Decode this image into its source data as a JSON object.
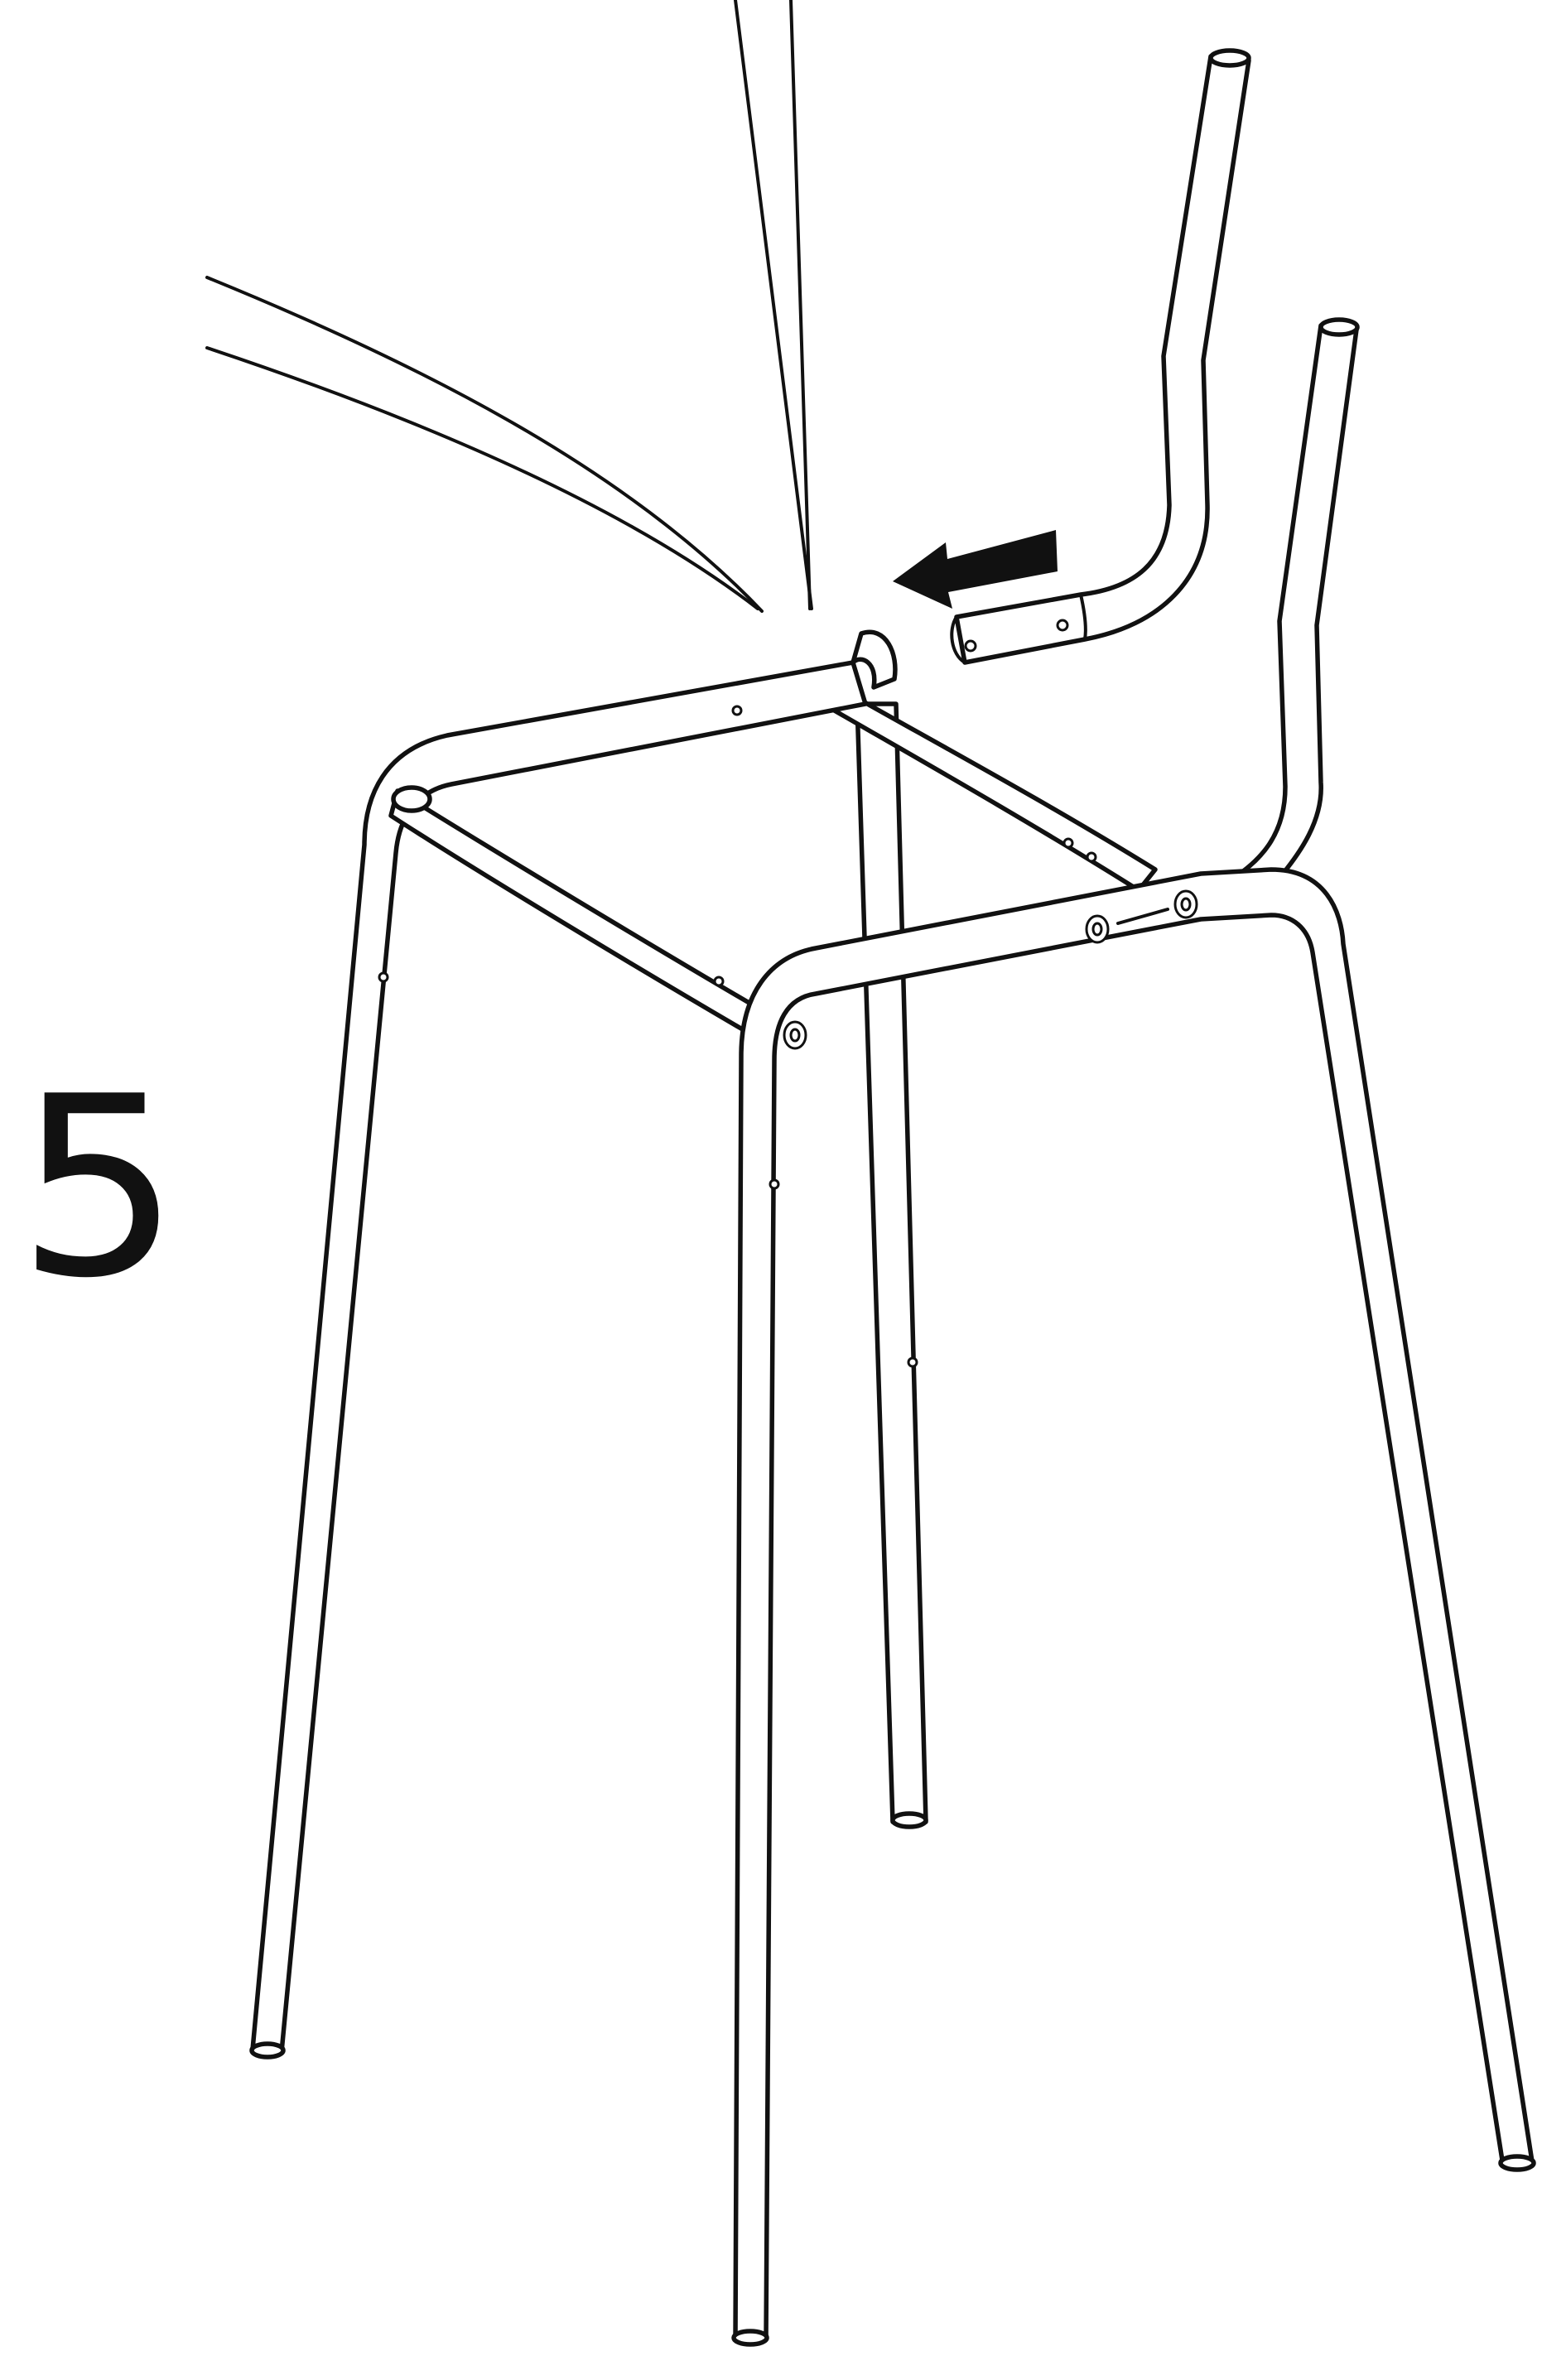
{
  "step": {
    "number": "5"
  },
  "colors": {
    "ink": "#111111",
    "paper": "#ffffff"
  },
  "icons": {
    "insert_direction": "arrow-left-icon"
  }
}
